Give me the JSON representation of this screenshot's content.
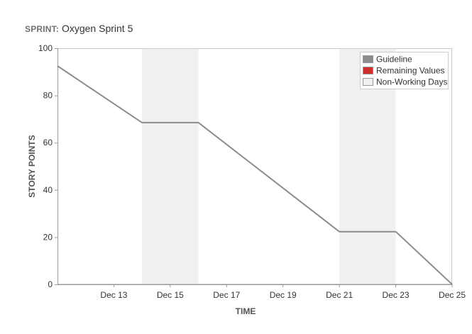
{
  "header": {
    "sprint_key": "SPRINT:",
    "sprint_value": "Oxygen Sprint 5"
  },
  "chart_data": {
    "type": "line",
    "xlabel": "TIME",
    "ylabel": "STORY POINTS",
    "ylim": [
      0,
      100
    ],
    "y_ticks": [
      0,
      20,
      40,
      60,
      80,
      100
    ],
    "x_domain": [
      "2023-12-11",
      "2023-12-25"
    ],
    "x_ticks": [
      {
        "date": "2023-12-13",
        "label": "Dec 13"
      },
      {
        "date": "2023-12-15",
        "label": "Dec 15"
      },
      {
        "date": "2023-12-17",
        "label": "Dec 17"
      },
      {
        "date": "2023-12-19",
        "label": "Dec 19"
      },
      {
        "date": "2023-12-21",
        "label": "Dec 21"
      },
      {
        "date": "2023-12-23",
        "label": "Dec 23"
      },
      {
        "date": "2023-12-25",
        "label": "Dec 25"
      }
    ],
    "non_working_periods": [
      {
        "start": "2023-12-14",
        "end": "2023-12-16"
      },
      {
        "start": "2023-12-21",
        "end": "2023-12-23"
      }
    ],
    "series": [
      {
        "name": "Guideline",
        "color": "#8c8c8c",
        "points": [
          {
            "x": "2023-12-11",
            "y": 92.5
          },
          {
            "x": "2023-12-14",
            "y": 68.5
          },
          {
            "x": "2023-12-16",
            "y": 68.5
          },
          {
            "x": "2023-12-21",
            "y": 22.3
          },
          {
            "x": "2023-12-23",
            "y": 22.3
          },
          {
            "x": "2023-12-25",
            "y": 0
          }
        ]
      }
    ],
    "legend": {
      "position": "top-right",
      "items": [
        {
          "label": "Guideline",
          "color": "#8c8c8c"
        },
        {
          "label": "Remaining Values",
          "color": "#d0302b"
        },
        {
          "label": "Non-Working Days",
          "color": "#f0f0f0"
        }
      ]
    },
    "colors": {
      "non_working_fill": "#f0f0f0",
      "axis": "#9a9a9a",
      "plot_border": "#c8c8c8"
    },
    "grid": false
  }
}
